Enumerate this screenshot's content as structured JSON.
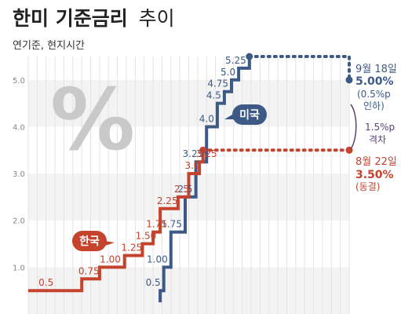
{
  "header": {
    "title_bold": "한미 기준금리",
    "title_light": "추이",
    "subtitle": "연기준, 현지시간"
  },
  "chart_data": {
    "type": "line",
    "ylim": [
      0,
      5.5
    ],
    "y_ticks": [
      "1.0",
      "2.0",
      "3.0",
      "4.0",
      "5.0"
    ],
    "grid": true,
    "x": [
      0,
      1,
      2,
      3,
      4,
      5,
      6,
      7,
      8,
      9,
      10,
      11,
      12,
      13,
      14,
      15,
      16,
      17,
      18,
      19,
      20,
      21,
      22,
      23,
      24,
      25,
      26,
      27,
      28,
      29,
      30,
      31,
      32,
      33,
      34,
      35,
      36,
      37,
      38,
      39,
      40,
      41,
      42,
      43,
      44,
      45,
      46,
      47,
      48,
      49,
      50,
      51,
      52,
      53,
      54,
      55,
      56,
      57,
      58,
      59,
      60,
      61,
      62,
      63,
      64,
      65,
      66,
      67,
      68,
      69,
      70,
      71,
      72,
      73,
      74,
      75,
      76,
      77,
      78,
      79,
      80,
      81,
      82,
      83,
      84,
      85,
      86,
      87,
      88,
      89,
      90
    ],
    "series": [
      {
        "name": "미국",
        "color": "#3d5a86",
        "points": [
          [
            37,
            0.25
          ],
          [
            37,
            0.5
          ],
          [
            38,
            0.5
          ],
          [
            38,
            1.0
          ],
          [
            40,
            1.0
          ],
          [
            40,
            1.75
          ],
          [
            44,
            1.75
          ],
          [
            44,
            2.5
          ],
          [
            47,
            2.5
          ],
          [
            47,
            3.25
          ],
          [
            50,
            3.25
          ],
          [
            50,
            4.0
          ],
          [
            53,
            4.0
          ],
          [
            53,
            4.5
          ],
          [
            55,
            4.5
          ],
          [
            55,
            4.75
          ],
          [
            57,
            4.75
          ],
          [
            57,
            5.0
          ],
          [
            59,
            5.0
          ],
          [
            59,
            5.25
          ],
          [
            62,
            5.25
          ],
          [
            62,
            5.5
          ],
          [
            90,
            5.5
          ],
          [
            90,
            5.0
          ]
        ],
        "step_labels": [
          {
            "text": "0.5",
            "x": 38,
            "y": 0.5
          },
          {
            "text": "1.00",
            "x": 40,
            "y": 1.0
          },
          {
            "text": "1.75",
            "x": 44,
            "y": 1.75
          },
          {
            "text": "2.5",
            "x": 47,
            "y": 2.5
          },
          {
            "text": "3.25",
            "x": 50,
            "y": 3.25
          },
          {
            "text": "4.0",
            "x": 53,
            "y": 4.0
          },
          {
            "text": "4.5",
            "x": 55,
            "y": 4.5
          },
          {
            "text": "4.75",
            "x": 57,
            "y": 4.75
          },
          {
            "text": "5.0",
            "x": 59,
            "y": 5.0
          },
          {
            "text": "5.25",
            "x": 62,
            "y": 5.25
          }
        ]
      },
      {
        "name": "한국",
        "color": "#c5432d",
        "points": [
          [
            0,
            0.5
          ],
          [
            15,
            0.5
          ],
          [
            15,
            0.75
          ],
          [
            20,
            0.75
          ],
          [
            20,
            1.0
          ],
          [
            27,
            1.0
          ],
          [
            27,
            1.25
          ],
          [
            32,
            1.25
          ],
          [
            32,
            1.5
          ],
          [
            35,
            1.5
          ],
          [
            35,
            1.75
          ],
          [
            37,
            1.75
          ],
          [
            37,
            2.25
          ],
          [
            42,
            2.25
          ],
          [
            42,
            2.5
          ],
          [
            45,
            2.5
          ],
          [
            45,
            3.0
          ],
          [
            48,
            3.0
          ],
          [
            48,
            3.25
          ],
          [
            49,
            3.25
          ],
          [
            49,
            3.5
          ],
          [
            90,
            3.5
          ]
        ],
        "step_labels": [
          {
            "text": "0.5",
            "x": 5,
            "y": 0.5
          },
          {
            "text": "0.75",
            "x": 17,
            "y": 0.75
          },
          {
            "text": "1.00",
            "x": 23,
            "y": 1.0
          },
          {
            "text": "1.25",
            "x": 29,
            "y": 1.25
          },
          {
            "text": "1.50",
            "x": 33,
            "y": 1.5
          },
          {
            "text": "1.75",
            "x": 36,
            "y": 1.75
          },
          {
            "text": "2.25",
            "x": 39,
            "y": 2.25
          },
          {
            "text": "2.5",
            "x": 43,
            "y": 2.5
          },
          {
            "text": "3.0",
            "x": 46,
            "y": 3.0
          },
          {
            "text": "3.25",
            "x": 50,
            "y": 3.25
          }
        ]
      }
    ],
    "annotations": {
      "us": {
        "date": "9월 18일",
        "value": "5.00%",
        "note1": "(0.5%p",
        "note2": "인하)"
      },
      "gap": {
        "line1": "1.5%p",
        "line2": "격차"
      },
      "kr": {
        "date": "8월 22일",
        "value": "3.50%",
        "note": "(동결)"
      }
    },
    "legend": {
      "us": "미국",
      "kr": "한국"
    },
    "percent_symbol": "%"
  }
}
